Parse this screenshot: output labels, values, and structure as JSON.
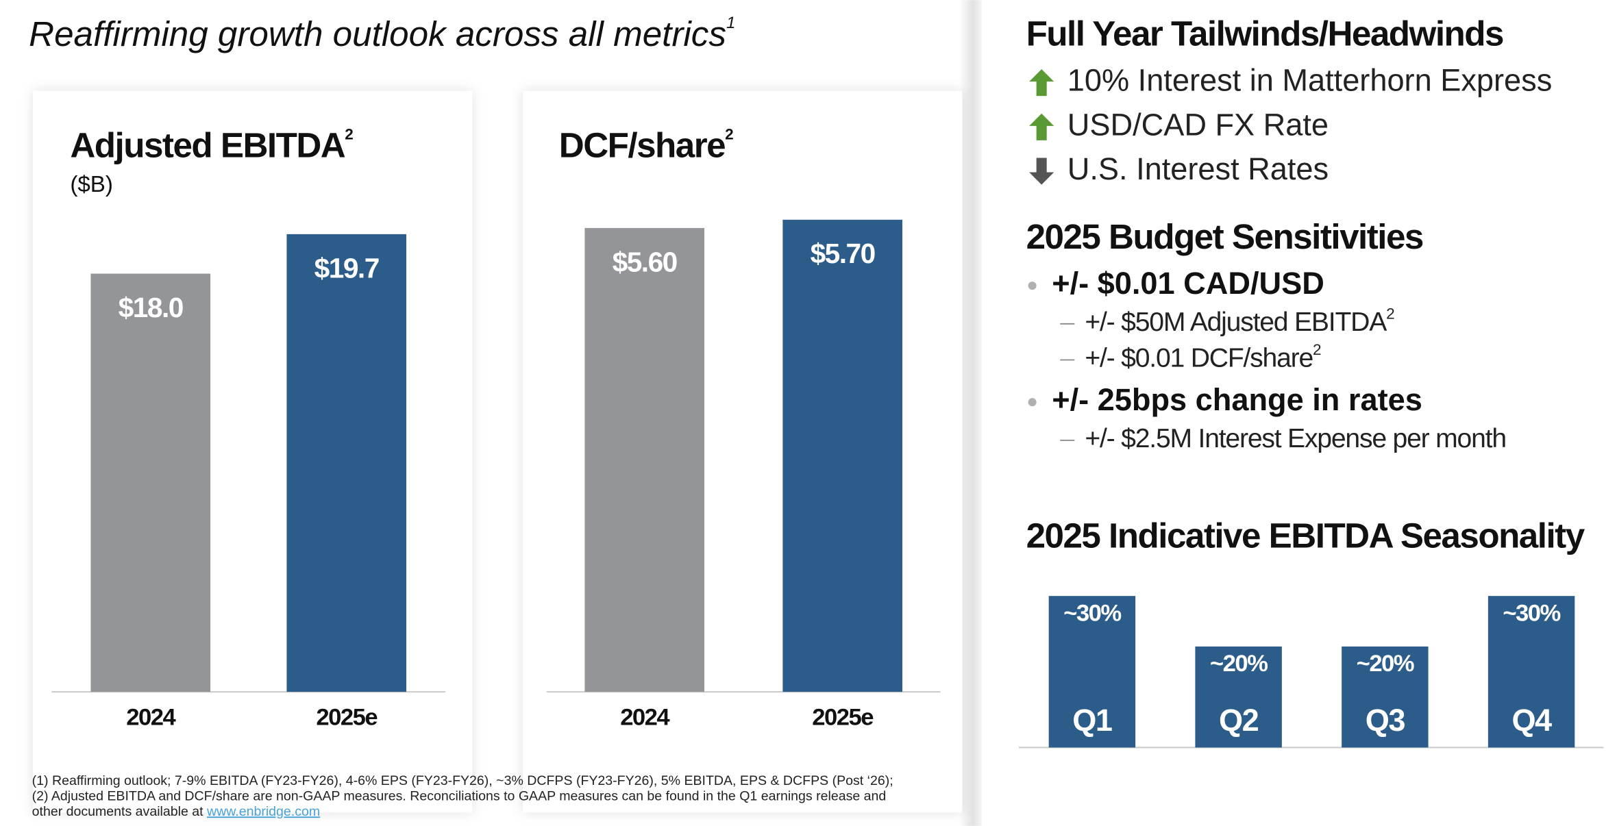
{
  "title": "Reaffirming growth outlook across all metrics",
  "title_note": "1",
  "chart_data": [
    {
      "type": "bar",
      "title": "Adjusted EBITDA",
      "title_note": "2",
      "subtitle": "($B)",
      "categories": [
        "2024",
        "2025e"
      ],
      "values": [
        18.0,
        19.7
      ],
      "value_labels": [
        "$18.0",
        "$19.7"
      ],
      "colors": [
        "#939598",
        "#2b5c8a"
      ]
    },
    {
      "type": "bar",
      "title": "DCF/share",
      "title_note": "2",
      "categories": [
        "2024",
        "2025e"
      ],
      "values": [
        5.6,
        5.7
      ],
      "value_labels": [
        "$5.60",
        "$5.70"
      ],
      "colors": [
        "#939598",
        "#2b5c8a"
      ]
    },
    {
      "type": "bar",
      "title": "2025 Indicative EBITDA Seasonality",
      "categories": [
        "Q1",
        "Q2",
        "Q3",
        "Q4"
      ],
      "values": [
        30,
        20,
        20,
        30
      ],
      "value_labels": [
        "~30%",
        "~20%",
        "~20%",
        "~30%"
      ],
      "color": "#2b5c8a"
    }
  ],
  "tailwinds": {
    "title": "Full Year Tailwinds/Headwinds",
    "items": [
      {
        "text": "10% Interest in Matterhorn Express",
        "direction": "up"
      },
      {
        "text": "USD/CAD FX Rate",
        "direction": "up"
      },
      {
        "text": "U.S. Interest Rates",
        "direction": "down"
      }
    ]
  },
  "sensitivities": {
    "title": "2025 Budget Sensitivities",
    "items": [
      {
        "text": "+/- $0.01 CAD/USD",
        "details": [
          {
            "text": "+/- $50M Adjusted EBITDA",
            "note": "2"
          },
          {
            "text": "+/-  $0.01 DCF/share",
            "note": "2"
          }
        ]
      },
      {
        "text": "+/- 25bps change in rates",
        "details": [
          {
            "text": "+/- $2.5M Interest Expense per month"
          }
        ]
      }
    ]
  },
  "footnotes": {
    "lines": [
      "(1) Reaffirming outlook; 7-9% EBITDA (FY23-FY26), 4-6% EPS (FY23-FY26), ~3% DCFPS (FY23-FY26), 5% EBITDA, EPS & DCFPS (Post ‘26);",
      "(2) Adjusted EBITDA and DCF/share are non-GAAP measures. Reconciliations to GAAP measures can be found in the Q1 earnings release and",
      "other documents available at "
    ],
    "link": "www.enbridge.com"
  }
}
